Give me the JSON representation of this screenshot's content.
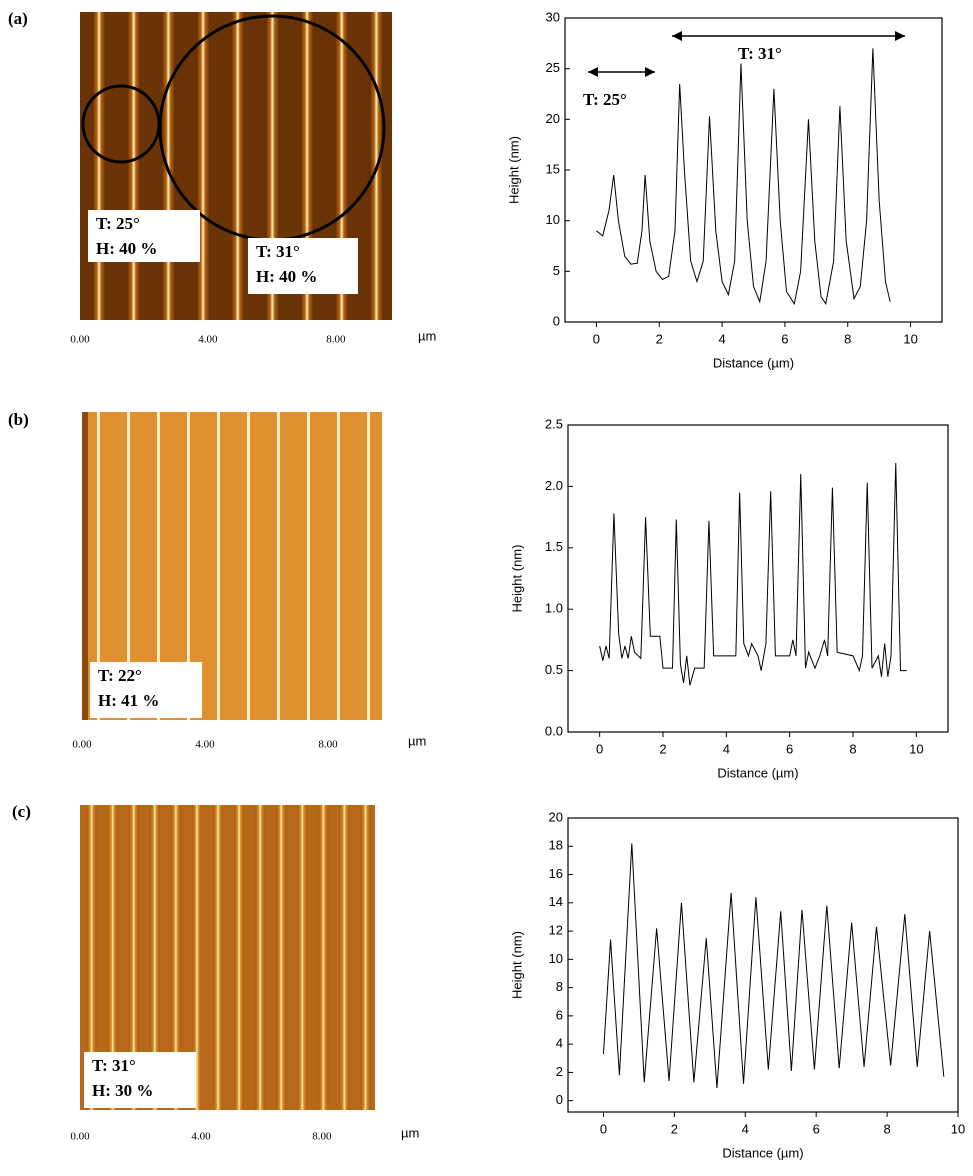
{
  "panel_labels": [
    "(a)",
    "(b)",
    "(c)"
  ],
  "images": [
    {
      "labels": [
        "T: 25°",
        "H: 40 %",
        "T: 31°",
        "H: 40 %"
      ],
      "axis_labels": [
        "0.00",
        "4.00",
        "8.00"
      ],
      "unit": "µm"
    },
    {
      "labels": [
        "T: 22°",
        "H: 41 %"
      ],
      "axis_labels": [
        "0.00",
        "4.00",
        "8.00"
      ],
      "unit": "µm"
    },
    {
      "labels": [
        "T: 31°",
        "H: 30 %"
      ],
      "axis_labels": [
        "0.00",
        "4.00",
        "8.00"
      ],
      "unit": "µm"
    }
  ],
  "chart_data": [
    {
      "type": "line",
      "x_label": "Distance (µm)",
      "y_label": "Height  (nm)",
      "color": "#000000",
      "annotations": [
        "T: 25°",
        "T: 31°"
      ],
      "xlim": [
        -1,
        11
      ],
      "ylim": [
        0,
        30
      ],
      "xticks": [
        0,
        2,
        4,
        6,
        8,
        10
      ],
      "yticks": [
        0,
        5,
        10,
        15,
        20,
        25,
        30
      ],
      "x": [
        0,
        0.2,
        0.4,
        0.55,
        0.7,
        0.9,
        1.1,
        1.3,
        1.45,
        1.55,
        1.7,
        1.9,
        2.1,
        2.3,
        2.5,
        2.65,
        2.8,
        3.0,
        3.2,
        3.4,
        3.6,
        3.8,
        4.0,
        4.2,
        4.4,
        4.6,
        4.8,
        5.0,
        5.2,
        5.4,
        5.65,
        5.85,
        6.05,
        6.3,
        6.5,
        6.75,
        6.95,
        7.15,
        7.3,
        7.55,
        7.75,
        7.95,
        8.2,
        8.4,
        8.6,
        8.8,
        9.0,
        9.2,
        9.35
      ],
      "values": [
        9,
        8.5,
        11,
        14.5,
        10,
        6.5,
        5.7,
        5.8,
        9,
        14.5,
        8,
        5,
        4.2,
        4.5,
        9,
        23.5,
        15,
        6,
        4,
        6,
        20.3,
        9,
        4,
        2.7,
        6,
        25.5,
        10,
        3.5,
        2,
        6,
        23,
        10,
        3,
        1.8,
        5,
        20,
        8,
        2.5,
        1.8,
        6,
        21.3,
        8,
        2.3,
        3.5,
        10,
        27,
        12,
        4,
        2
      ]
    },
    {
      "type": "line",
      "x_label": "Distance (µm)",
      "y_label": "Height (nm)",
      "color": "#000000",
      "xlim": [
        -1,
        11
      ],
      "ylim": [
        0,
        2.5
      ],
      "xticks": [
        0,
        2,
        4,
        6,
        8,
        10
      ],
      "yticks": [
        {
          "value": 0,
          "label": "0.0"
        },
        0.5,
        {
          "value": 1,
          "label": "1.0"
        },
        1.5,
        {
          "value": 2,
          "label": "2.0"
        },
        2.5
      ],
      "x": [
        0,
        0.1,
        0.2,
        0.3,
        0.45,
        0.6,
        0.7,
        0.8,
        0.9,
        1.0,
        1.1,
        1.3,
        1.45,
        1.6,
        1.9,
        2.0,
        2.3,
        2.42,
        2.55,
        2.65,
        2.75,
        2.85,
        3.0,
        3.3,
        3.45,
        3.6,
        4.3,
        4.42,
        4.55,
        4.7,
        4.8,
        5.0,
        5.1,
        5.25,
        5.4,
        5.55,
        6.0,
        6.1,
        6.2,
        6.35,
        6.5,
        6.6,
        6.8,
        6.95,
        7.1,
        7.2,
        7.35,
        7.5,
        8.0,
        8.2,
        8.3,
        8.45,
        8.6,
        8.8,
        8.9,
        9.0,
        9.1,
        9.2,
        9.35,
        9.5,
        9.7
      ],
      "values": [
        0.7,
        0.58,
        0.7,
        0.6,
        1.78,
        0.8,
        0.6,
        0.7,
        0.6,
        0.78,
        0.65,
        0.6,
        1.75,
        0.78,
        0.78,
        0.52,
        0.52,
        1.73,
        0.55,
        0.4,
        0.62,
        0.38,
        0.52,
        0.52,
        1.72,
        0.62,
        0.62,
        1.95,
        0.72,
        0.62,
        0.72,
        0.62,
        0.5,
        0.72,
        1.96,
        0.62,
        0.62,
        0.75,
        0.62,
        2.1,
        0.52,
        0.65,
        0.52,
        0.62,
        0.75,
        0.62,
        1.99,
        0.65,
        0.62,
        0.5,
        0.62,
        2.03,
        0.52,
        0.62,
        0.45,
        0.72,
        0.45,
        0.62,
        2.19,
        0.5,
        0.5
      ]
    },
    {
      "type": "line",
      "x_label": "Distance (µm)",
      "y_label": "Height (nm)",
      "color": "#000000",
      "xlim": [
        -1,
        10
      ],
      "ylim": [
        -0.8,
        20
      ],
      "xticks": [
        0,
        2,
        4,
        6,
        8,
        10
      ],
      "yticks": [
        0,
        2,
        4,
        6,
        8,
        10,
        12,
        14,
        16,
        18,
        20
      ],
      "x": [
        0,
        0.2,
        0.45,
        0.8,
        1.15,
        1.5,
        1.85,
        2.2,
        2.55,
        2.9,
        3.2,
        3.6,
        3.95,
        4.3,
        4.65,
        5.0,
        5.3,
        5.6,
        5.95,
        6.3,
        6.65,
        7.0,
        7.35,
        7.7,
        8.1,
        8.5,
        8.85,
        9.2,
        9.6
      ],
      "values": [
        3.3,
        11.4,
        1.8,
        18.2,
        1.3,
        12.2,
        1.4,
        14,
        1.3,
        11.5,
        0.9,
        14.7,
        1.2,
        14.4,
        2.2,
        13.4,
        2.1,
        13.5,
        2.2,
        13.8,
        2.3,
        12.6,
        2.4,
        12.3,
        2.5,
        13.2,
        2.4,
        12,
        1.7
      ]
    }
  ]
}
